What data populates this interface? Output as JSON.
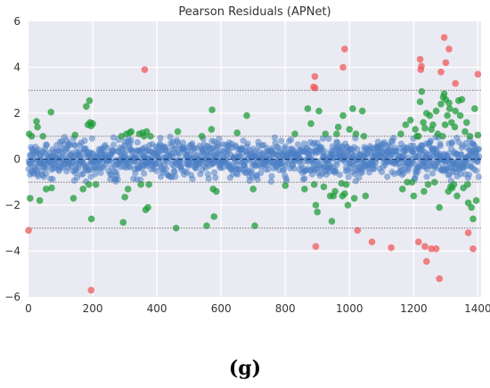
{
  "caption": "(g)",
  "colors": {
    "background": "#eaeaf2",
    "grid": "#ffffff",
    "normal": "#4c7fc4",
    "moderate": "#1f9e3a",
    "extreme": "#ef5a5a",
    "zero_line": "#1a3f7a",
    "threshold_line": "#7a7a7a"
  },
  "chart_data": {
    "type": "scatter",
    "title": "Pearson Residuals (APNet)",
    "xlabel": "",
    "ylabel": "",
    "xlim": [
      0,
      1410
    ],
    "ylim": [
      -6,
      6
    ],
    "x_ticks": [
      "0",
      "200",
      "400",
      "600",
      "800",
      "1000",
      "1200",
      "1400"
    ],
    "y_ticks": [
      "6",
      "4",
      "2",
      "0",
      "−2",
      "−4",
      "−6"
    ],
    "grid": true,
    "reference_lines": [
      {
        "y": 0,
        "style": "dashed",
        "color": "zero_line"
      },
      {
        "y": 1,
        "style": "dotted",
        "color": "threshold_line"
      },
      {
        "y": -1,
        "style": "dotted",
        "color": "threshold_line"
      },
      {
        "y": 3,
        "style": "dotted",
        "color": "threshold_line"
      },
      {
        "y": -3,
        "style": "dotted",
        "color": "threshold_line"
      }
    ],
    "series": [
      {
        "color": "extreme",
        "points": [
          [
            0,
            -3.1
          ],
          [
            195,
            -5.7
          ],
          [
            362,
            3.9
          ],
          [
            888,
            3.15
          ],
          [
            892,
            3.6
          ],
          [
            893,
            3.1
          ],
          [
            895,
            -3.8
          ],
          [
            980,
            4.0
          ],
          [
            985,
            4.8
          ],
          [
            1025,
            -3.1
          ],
          [
            1070,
            -3.6
          ],
          [
            1130,
            -3.85
          ],
          [
            1215,
            -3.6
          ],
          [
            1220,
            4.35
          ],
          [
            1222,
            3.9
          ],
          [
            1224,
            4.05
          ],
          [
            1235,
            -3.8
          ],
          [
            1240,
            -4.45
          ],
          [
            1255,
            -3.9
          ],
          [
            1270,
            -3.9
          ],
          [
            1280,
            -5.2
          ],
          [
            1285,
            3.8
          ],
          [
            1295,
            5.3
          ],
          [
            1300,
            4.2
          ],
          [
            1310,
            4.8
          ],
          [
            1330,
            3.3
          ],
          [
            1370,
            -3.2
          ],
          [
            1385,
            -3.9
          ],
          [
            1400,
            3.7
          ]
        ]
      },
      {
        "color": "moderate",
        "points": [
          [
            2,
            1.1
          ],
          [
            5,
            -1.7
          ],
          [
            10,
            1.0
          ],
          [
            25,
            1.65
          ],
          [
            28,
            1.4
          ],
          [
            35,
            -1.8
          ],
          [
            45,
            1.0
          ],
          [
            55,
            -1.3
          ],
          [
            70,
            2.05
          ],
          [
            72,
            -1.25
          ],
          [
            140,
            -1.7
          ],
          [
            145,
            1.05
          ],
          [
            170,
            -1.3
          ],
          [
            180,
            2.3
          ],
          [
            185,
            1.5
          ],
          [
            188,
            -1.1
          ],
          [
            190,
            2.55
          ],
          [
            192,
            1.6
          ],
          [
            195,
            1.45
          ],
          [
            196,
            -2.6
          ],
          [
            200,
            1.55
          ],
          [
            210,
            -1.1
          ],
          [
            290,
            1.0
          ],
          [
            295,
            -2.75
          ],
          [
            300,
            -1.65
          ],
          [
            305,
            1.1
          ],
          [
            310,
            -1.3
          ],
          [
            315,
            1.15
          ],
          [
            320,
            1.2
          ],
          [
            345,
            1.1
          ],
          [
            350,
            -1.1
          ],
          [
            355,
            1.15
          ],
          [
            360,
            1.0
          ],
          [
            365,
            -2.2
          ],
          [
            368,
            1.2
          ],
          [
            372,
            -2.1
          ],
          [
            375,
            -1.1
          ],
          [
            380,
            1.0
          ],
          [
            460,
            -3.0
          ],
          [
            465,
            1.2
          ],
          [
            540,
            1.0
          ],
          [
            555,
            -2.9
          ],
          [
            570,
            1.3
          ],
          [
            572,
            2.15
          ],
          [
            575,
            -1.3
          ],
          [
            578,
            -2.5
          ],
          [
            585,
            -1.4
          ],
          [
            650,
            1.15
          ],
          [
            680,
            1.9
          ],
          [
            700,
            -1.3
          ],
          [
            705,
            -2.9
          ],
          [
            800,
            -1.15
          ],
          [
            830,
            1.1
          ],
          [
            860,
            -1.3
          ],
          [
            870,
            2.2
          ],
          [
            880,
            1.55
          ],
          [
            890,
            -1.1
          ],
          [
            895,
            -2.0
          ],
          [
            900,
            -2.3
          ],
          [
            905,
            2.1
          ],
          [
            920,
            -1.2
          ],
          [
            925,
            1.1
          ],
          [
            940,
            -1.6
          ],
          [
            945,
            -2.7
          ],
          [
            950,
            -1.6
          ],
          [
            955,
            -1.4
          ],
          [
            960,
            1.1
          ],
          [
            965,
            1.4
          ],
          [
            975,
            -1.05
          ],
          [
            978,
            -1.6
          ],
          [
            980,
            1.9
          ],
          [
            985,
            -1.5
          ],
          [
            990,
            -1.1
          ],
          [
            995,
            -2.0
          ],
          [
            1000,
            1.3
          ],
          [
            1010,
            2.2
          ],
          [
            1015,
            -1.7
          ],
          [
            1020,
            1.1
          ],
          [
            1040,
            2.1
          ],
          [
            1045,
            1.0
          ],
          [
            1050,
            -1.6
          ],
          [
            1160,
            1.1
          ],
          [
            1165,
            -1.3
          ],
          [
            1175,
            1.5
          ],
          [
            1180,
            -1.0
          ],
          [
            1190,
            1.7
          ],
          [
            1195,
            -1.0
          ],
          [
            1200,
            -1.6
          ],
          [
            1205,
            1.3
          ],
          [
            1210,
            1.0
          ],
          [
            1215,
            1.0
          ],
          [
            1220,
            2.5
          ],
          [
            1225,
            2.95
          ],
          [
            1230,
            1.6
          ],
          [
            1232,
            -1.4
          ],
          [
            1235,
            1.35
          ],
          [
            1240,
            2.0
          ],
          [
            1245,
            -1.1
          ],
          [
            1250,
            1.9
          ],
          [
            1255,
            1.3
          ],
          [
            1260,
            1.5
          ],
          [
            1265,
            -1.0
          ],
          [
            1270,
            2.1
          ],
          [
            1275,
            1.1
          ],
          [
            1280,
            -2.1
          ],
          [
            1285,
            2.4
          ],
          [
            1290,
            1.0
          ],
          [
            1292,
            2.7
          ],
          [
            1295,
            2.85
          ],
          [
            1298,
            1.5
          ],
          [
            1300,
            2.6
          ],
          [
            1305,
            1.9
          ],
          [
            1308,
            -1.4
          ],
          [
            1310,
            2.45
          ],
          [
            1312,
            2.2
          ],
          [
            1315,
            -1.2
          ],
          [
            1318,
            1.6
          ],
          [
            1320,
            -1.25
          ],
          [
            1325,
            -1.1
          ],
          [
            1328,
            1.4
          ],
          [
            1330,
            2.1
          ],
          [
            1335,
            -1.6
          ],
          [
            1340,
            2.55
          ],
          [
            1345,
            1.9
          ],
          [
            1350,
            2.6
          ],
          [
            1355,
            -1.25
          ],
          [
            1360,
            1.2
          ],
          [
            1365,
            1.6
          ],
          [
            1368,
            -1.1
          ],
          [
            1370,
            -1.9
          ],
          [
            1375,
            1.0
          ],
          [
            1380,
            -2.1
          ],
          [
            1385,
            -2.6
          ],
          [
            1390,
            2.2
          ],
          [
            1395,
            -1.8
          ],
          [
            1400,
            1.05
          ]
        ]
      },
      {
        "color": "normal",
        "generated": true,
        "count": 1300,
        "spread": "most residuals lie within ±1, denser near 0",
        "x_range": [
          0,
          1405
        ]
      }
    ]
  }
}
